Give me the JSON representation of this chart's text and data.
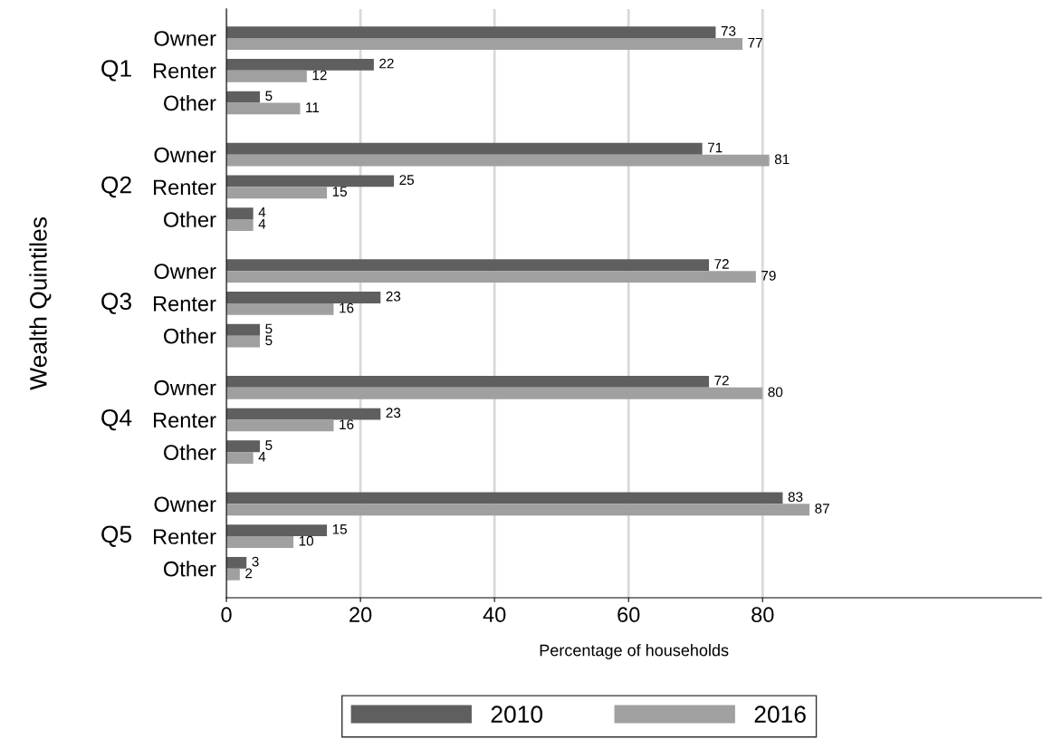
{
  "chart_data": {
    "type": "bar",
    "orientation": "horizontal",
    "ylabel": "Wealth Quintiles",
    "xlabel": "Percentage of households",
    "categories": [
      "Owner",
      "Renter",
      "Other",
      "Owner",
      "Renter",
      "Other",
      "Owner",
      "Renter",
      "Other",
      "Owner",
      "Renter",
      "Other",
      "Owner",
      "Renter",
      "Other"
    ],
    "annotations": [
      "Q1",
      "Q2",
      "Q3",
      "Q4",
      "Q5"
    ],
    "series": [
      {
        "name": "2010",
        "color": "#5f5f5f",
        "values": [
          73,
          22,
          5,
          71,
          25,
          4,
          72,
          23,
          5,
          72,
          23,
          5,
          83,
          15,
          3
        ]
      },
      {
        "name": "2016",
        "color": "#a0a0a0",
        "values": [
          77,
          12,
          11,
          81,
          15,
          4,
          79,
          16,
          5,
          80,
          16,
          4,
          87,
          10,
          2
        ]
      }
    ],
    "xlim": [
      0,
      121.6
    ],
    "xticks": [
      0,
      20,
      40,
      60,
      80
    ],
    "grid": "x",
    "legend": "bottom",
    "data_labels": true
  }
}
